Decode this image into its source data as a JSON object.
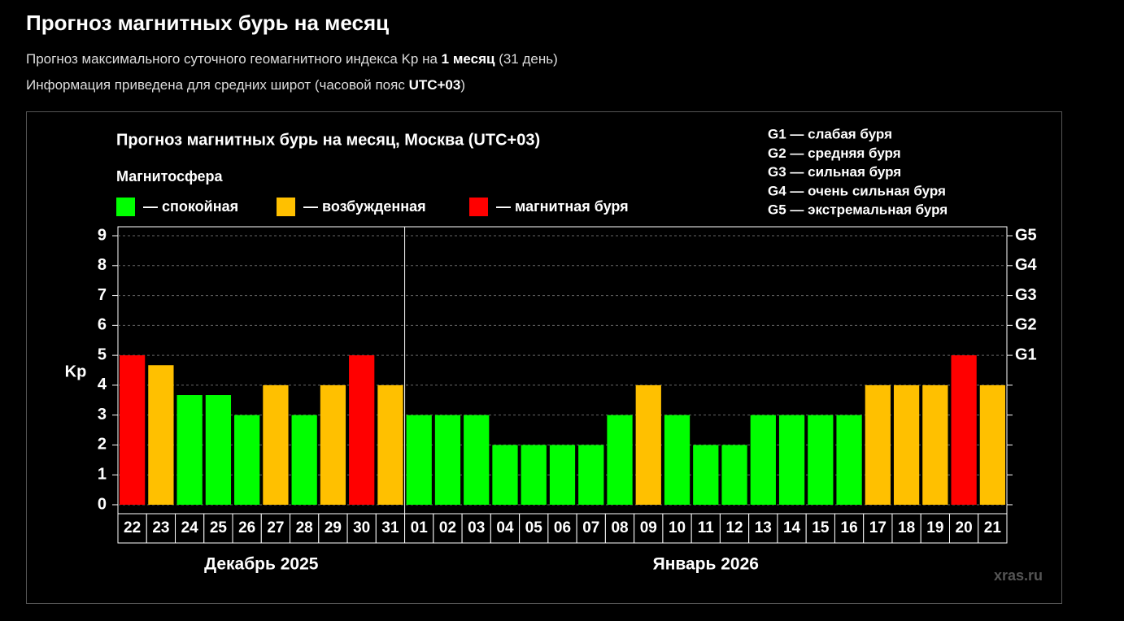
{
  "header": {
    "title": "Прогноз магнитных бурь на месяц",
    "lines": [
      [
        {
          "text": "Прогноз максимального суточного геомагнитного индекса Kp на "
        },
        {
          "text": "1 месяц",
          "bold": true
        },
        {
          "text": " (31 день)"
        }
      ],
      [
        {
          "text": "Информация приведена для средних широт (часовой пояс "
        },
        {
          "text": "UTC+03",
          "bold": true
        },
        {
          "text": ")"
        }
      ]
    ]
  },
  "chart_data": {
    "type": "bar",
    "title": "Прогноз магнитных бурь на месяц, Москва (UTC+03)",
    "legend_title": "Магнитосфера",
    "legend": [
      {
        "name": "— спокойная",
        "color": "#00ff00"
      },
      {
        "name": "— возбужденная",
        "color": "#ffc000"
      },
      {
        "name": "— магнитная буря",
        "color": "#ff0000"
      }
    ],
    "scale_notes": [
      "G1 — слабая буря",
      "G2 — средняя буря",
      "G3 — сильная буря",
      "G4 — очень сильная буря",
      "G5 — экстремальная буря"
    ],
    "ylabel": "Kp",
    "ylim": [
      -0.3,
      9.3
    ],
    "yticks": [
      0,
      1,
      2,
      3,
      4,
      5,
      6,
      7,
      8,
      9
    ],
    "y2ticks": [
      {
        "value": 5,
        "label": "G1"
      },
      {
        "value": 6,
        "label": "G2"
      },
      {
        "value": 7,
        "label": "G3"
      },
      {
        "value": 8,
        "label": "G4"
      },
      {
        "value": 9,
        "label": "G5"
      }
    ],
    "grid": true,
    "groups": [
      {
        "label": "Декабрь 2025",
        "categories": [
          "22",
          "23",
          "24",
          "25",
          "26",
          "27",
          "28",
          "29",
          "30",
          "31"
        ],
        "values": [
          5,
          4.67,
          3.67,
          3.67,
          3,
          4,
          3,
          4,
          5,
          4
        ],
        "colors": [
          "#ff0000",
          "#ffc000",
          "#00ff00",
          "#00ff00",
          "#00ff00",
          "#ffc000",
          "#00ff00",
          "#ffc000",
          "#ff0000",
          "#ffc000"
        ]
      },
      {
        "label": "Январь 2026",
        "categories": [
          "01",
          "02",
          "03",
          "04",
          "05",
          "06",
          "07",
          "08",
          "09",
          "10",
          "11",
          "12",
          "13",
          "14",
          "15",
          "16",
          "17",
          "18",
          "19",
          "20",
          "21"
        ],
        "values": [
          3,
          3,
          3,
          2,
          2,
          2,
          2,
          3,
          4,
          3,
          2,
          2,
          3,
          3,
          3,
          3,
          4,
          4,
          4,
          5,
          4
        ],
        "colors": [
          "#00ff00",
          "#00ff00",
          "#00ff00",
          "#00ff00",
          "#00ff00",
          "#00ff00",
          "#00ff00",
          "#00ff00",
          "#ffc000",
          "#00ff00",
          "#00ff00",
          "#00ff00",
          "#00ff00",
          "#00ff00",
          "#00ff00",
          "#00ff00",
          "#ffc000",
          "#ffc000",
          "#ffc000",
          "#ff0000",
          "#ffc000"
        ]
      }
    ],
    "watermark": "xras.ru"
  }
}
